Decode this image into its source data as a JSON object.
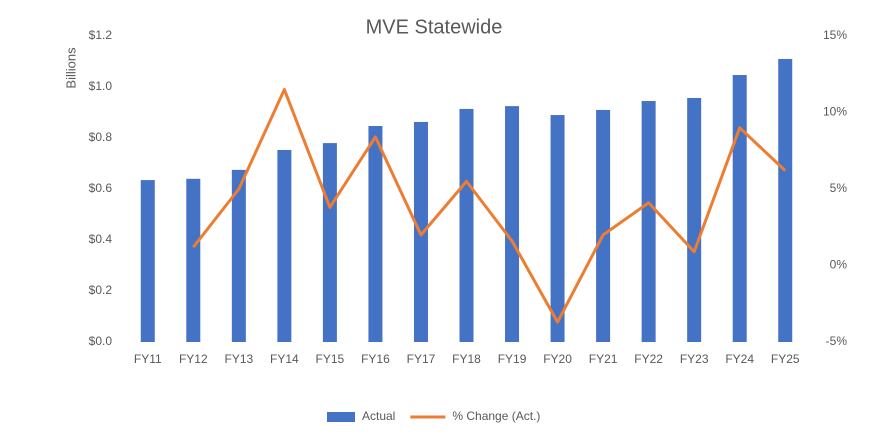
{
  "chart_data": {
    "type": "bar",
    "title": "MVE Statewide",
    "y_label": "Billions",
    "categories": [
      "FY11",
      "FY12",
      "FY13",
      "FY14",
      "FY15",
      "FY16",
      "FY17",
      "FY18",
      "FY19",
      "FY20",
      "FY21",
      "FY22",
      "FY23",
      "FY24",
      "FY25"
    ],
    "series": [
      {
        "name": "Actual",
        "type": "bar",
        "color": "#4472c4",
        "values": [
          0.635,
          0.64,
          0.675,
          0.753,
          0.78,
          0.847,
          0.863,
          0.914,
          0.925,
          0.89,
          0.91,
          0.945,
          0.957,
          1.047,
          1.11
        ]
      },
      {
        "name": "% Change (Act.)",
        "type": "line",
        "axis": "y2",
        "color": "#ed7d31",
        "values": [
          null,
          1.2,
          5.0,
          11.5,
          3.8,
          8.4,
          2.0,
          5.5,
          1.6,
          -3.7,
          2.0,
          4.1,
          0.9,
          9.0,
          6.2
        ]
      }
    ],
    "ylim": [
      0,
      1.2
    ],
    "yticks": [
      {
        "value": 0,
        "label": "$0.0"
      },
      {
        "value": 0.2,
        "label": "$0.2"
      },
      {
        "value": 0.4,
        "label": "$0.4"
      },
      {
        "value": 0.6,
        "label": "$0.6"
      },
      {
        "value": 0.8,
        "label": "$0.8"
      },
      {
        "value": 1.0,
        "label": "$1.0"
      },
      {
        "value": 1.2,
        "label": "$1.2"
      }
    ],
    "y2lim": [
      -5,
      15
    ],
    "y2ticks": [
      {
        "value": -5,
        "label": "-5%"
      },
      {
        "value": 0,
        "label": "0%"
      },
      {
        "value": 5,
        "label": "5%"
      },
      {
        "value": 10,
        "label": "10%"
      },
      {
        "value": 15,
        "label": "15%"
      }
    ],
    "grid": false,
    "legend": "bottom"
  }
}
